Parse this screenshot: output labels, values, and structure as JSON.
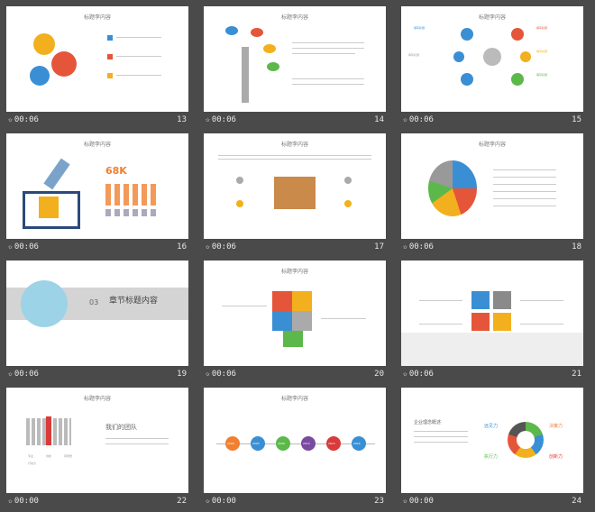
{
  "slide_title": "标题李内容",
  "thumbs": [
    {
      "time": "00:06",
      "num": "13"
    },
    {
      "time": "00:06",
      "num": "14"
    },
    {
      "time": "00:06",
      "num": "15"
    },
    {
      "time": "00:06",
      "num": "16"
    },
    {
      "time": "00:06",
      "num": "17"
    },
    {
      "time": "00:06",
      "num": "18"
    },
    {
      "time": "00:06",
      "num": "19"
    },
    {
      "time": "00:06",
      "num": "20"
    },
    {
      "time": "00:06",
      "num": "21"
    },
    {
      "time": "00:00",
      "num": "22"
    },
    {
      "time": "00:00",
      "num": "23"
    },
    {
      "time": "00:00",
      "num": "24"
    }
  ],
  "s15": {
    "label_a": "填写标题",
    "label_b": "填写标题",
    "label_c": "填写标题",
    "label_d": "填写标题",
    "center": "填写标题"
  },
  "s16": {
    "stat": "68K"
  },
  "s19": {
    "num": "03",
    "heading": "章节标题内容"
  },
  "s22": {
    "heading": "我们的团队",
    "tags": [
      "专业",
      "创新",
      "有梦想",
      "行动力"
    ]
  },
  "s23": {
    "years": [
      "2000",
      "2003",
      "2008",
      "2014",
      "2015",
      "2016"
    ]
  },
  "s24": {
    "heading": "企业理念概述",
    "words": [
      "远见力",
      "决策力",
      "执行力",
      "创新力"
    ]
  },
  "colors": {
    "accent": "#f0a030",
    "blue": "#3a8fd4",
    "red": "#d93a3a",
    "green": "#5cb84a"
  }
}
